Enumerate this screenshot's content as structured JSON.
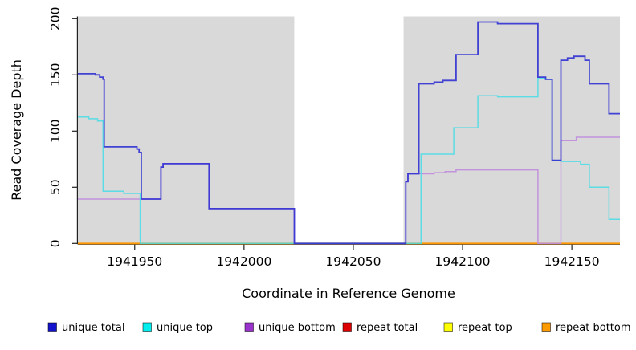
{
  "chart_data": {
    "type": "line",
    "title": "",
    "xlabel": "Coordinate in Reference Genome",
    "ylabel": "Read Coverage Depth",
    "xlim": [
      1941924,
      1942172
    ],
    "ylim": [
      0,
      202
    ],
    "x_ticks": [
      1941950,
      1942000,
      1942050,
      1942100,
      1942150
    ],
    "y_ticks": [
      0,
      50,
      100,
      150,
      200
    ],
    "grid": false,
    "legend_position": "bottom",
    "background": {
      "plot_fill": "#D9D9D9",
      "gap_region": {
        "x0": 1942023,
        "x1": 1942073,
        "fill": "#FFFFFF"
      }
    },
    "series": [
      {
        "name": "repeat total",
        "color": "#DD0000",
        "opacity": 1,
        "width": 1.6,
        "points": [
          [
            1941924,
            0
          ],
          [
            1942172,
            0
          ]
        ]
      },
      {
        "name": "repeat top",
        "color": "#FFFF00",
        "opacity": 1,
        "width": 1.6,
        "points": [
          [
            1941924,
            0
          ],
          [
            1942172,
            0
          ]
        ]
      },
      {
        "name": "repeat bottom",
        "color": "#FF9900",
        "opacity": 1,
        "width": 1.8,
        "points": [
          [
            1941924,
            0
          ],
          [
            1942172,
            0
          ]
        ]
      },
      {
        "name": "unique bottom",
        "color": "#C18FDC",
        "opacity": 0.95,
        "width": 1.5,
        "points": [
          [
            1941924,
            39.5
          ],
          [
            1941962,
            68
          ],
          [
            1941963,
            71
          ],
          [
            1941984,
            31
          ],
          [
            1942023,
            0
          ],
          [
            1942074,
            55
          ],
          [
            1942075,
            62
          ],
          [
            1942087,
            63
          ],
          [
            1942092,
            64
          ],
          [
            1942097,
            65.5
          ],
          [
            1942134.5,
            0
          ],
          [
            1942145,
            91.5
          ],
          [
            1942152,
            94.5
          ],
          [
            1942172,
            94.5
          ]
        ]
      },
      {
        "name": "unique top",
        "color": "#45DCE6",
        "opacity": 0.85,
        "width": 1.5,
        "points": [
          [
            1941924,
            112.5
          ],
          [
            1941929,
            111
          ],
          [
            1941933,
            109
          ],
          [
            1941935.5,
            46.5
          ],
          [
            1941945,
            44.5
          ],
          [
            1941952.5,
            0
          ],
          [
            1942081,
            79.5
          ],
          [
            1942096,
            103
          ],
          [
            1942107,
            131.5
          ],
          [
            1942116,
            130.5
          ],
          [
            1942134.5,
            147
          ],
          [
            1942138,
            146
          ],
          [
            1942141,
            74
          ],
          [
            1942145,
            73
          ],
          [
            1942154,
            70.5
          ],
          [
            1942158,
            50
          ],
          [
            1942167,
            21.5
          ],
          [
            1942172,
            21.5
          ]
        ]
      },
      {
        "name": "unique total",
        "color": "#3030D2",
        "opacity": 0.9,
        "width": 1.8,
        "points": [
          [
            1941924,
            151
          ],
          [
            1941932,
            150
          ],
          [
            1941934,
            148
          ],
          [
            1941935.5,
            146
          ],
          [
            1941936,
            86
          ],
          [
            1941951,
            84
          ],
          [
            1941952,
            81
          ],
          [
            1941953,
            39.5
          ],
          [
            1941962,
            68
          ],
          [
            1941963,
            71
          ],
          [
            1941984,
            31
          ],
          [
            1942023,
            0
          ],
          [
            1942074,
            55
          ],
          [
            1942075,
            62
          ],
          [
            1942080,
            142
          ],
          [
            1942087,
            143.5
          ],
          [
            1942091,
            145
          ],
          [
            1942097,
            168
          ],
          [
            1942107,
            197
          ],
          [
            1942116,
            195.5
          ],
          [
            1942134.5,
            148
          ],
          [
            1942138,
            146
          ],
          [
            1942141,
            74
          ],
          [
            1942145,
            163
          ],
          [
            1942148,
            165
          ],
          [
            1942151,
            166.5
          ],
          [
            1942156,
            163
          ],
          [
            1942158,
            142
          ],
          [
            1942167,
            115.5
          ],
          [
            1942172,
            115.5
          ]
        ]
      }
    ],
    "legend": [
      {
        "label": "unique total",
        "color": "#1414CC"
      },
      {
        "label": "unique top",
        "color": "#00EEEE"
      },
      {
        "label": "unique bottom",
        "color": "#9933CC"
      },
      {
        "label": "repeat total",
        "color": "#DD0000"
      },
      {
        "label": "repeat top",
        "color": "#FFFF00"
      },
      {
        "label": "repeat bottom",
        "color": "#FF9900"
      }
    ]
  }
}
